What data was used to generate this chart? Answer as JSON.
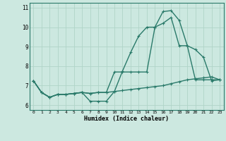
{
  "xlabel": "Humidex (Indice chaleur)",
  "bg_color": "#cce8e0",
  "line_color": "#2a7a6a",
  "grid_color": "#b0d4c8",
  "xlim": [
    -0.5,
    23.5
  ],
  "ylim": [
    5.75,
    11.25
  ],
  "xticks": [
    0,
    1,
    2,
    3,
    4,
    5,
    6,
    7,
    8,
    9,
    10,
    11,
    12,
    13,
    14,
    15,
    16,
    17,
    18,
    19,
    20,
    21,
    22,
    23
  ],
  "yticks": [
    6,
    7,
    8,
    9,
    10,
    11
  ],
  "line1_x": [
    0,
    1,
    2,
    3,
    4,
    5,
    6,
    7,
    8,
    9,
    10,
    11,
    12,
    13,
    14,
    15,
    16,
    17,
    18,
    19,
    20,
    21,
    22,
    23
  ],
  "line1_y": [
    7.25,
    6.65,
    6.4,
    6.55,
    6.55,
    6.6,
    6.65,
    6.2,
    6.2,
    6.2,
    6.7,
    7.75,
    8.7,
    9.55,
    10.0,
    10.0,
    10.8,
    10.85,
    10.35,
    9.05,
    8.85,
    8.45,
    7.25,
    7.3
  ],
  "line2_x": [
    0,
    1,
    2,
    3,
    4,
    5,
    6,
    7,
    8,
    9,
    10,
    11,
    12,
    13,
    14,
    15,
    16,
    17,
    18,
    19,
    20,
    21,
    22,
    23
  ],
  "line2_y": [
    7.25,
    6.65,
    6.4,
    6.55,
    6.55,
    6.6,
    6.65,
    6.6,
    6.65,
    6.65,
    7.7,
    7.7,
    7.7,
    7.7,
    7.7,
    10.0,
    10.2,
    10.5,
    9.05,
    9.05,
    7.3,
    7.3,
    7.3,
    7.3
  ],
  "line3_x": [
    0,
    1,
    2,
    3,
    4,
    5,
    6,
    7,
    8,
    9,
    10,
    11,
    12,
    13,
    14,
    15,
    16,
    17,
    18,
    19,
    20,
    21,
    22,
    23
  ],
  "line3_y": [
    7.25,
    6.65,
    6.4,
    6.55,
    6.55,
    6.6,
    6.65,
    6.6,
    6.65,
    6.65,
    6.7,
    6.75,
    6.8,
    6.85,
    6.9,
    6.95,
    7.0,
    7.1,
    7.2,
    7.3,
    7.35,
    7.4,
    7.45,
    7.3
  ]
}
